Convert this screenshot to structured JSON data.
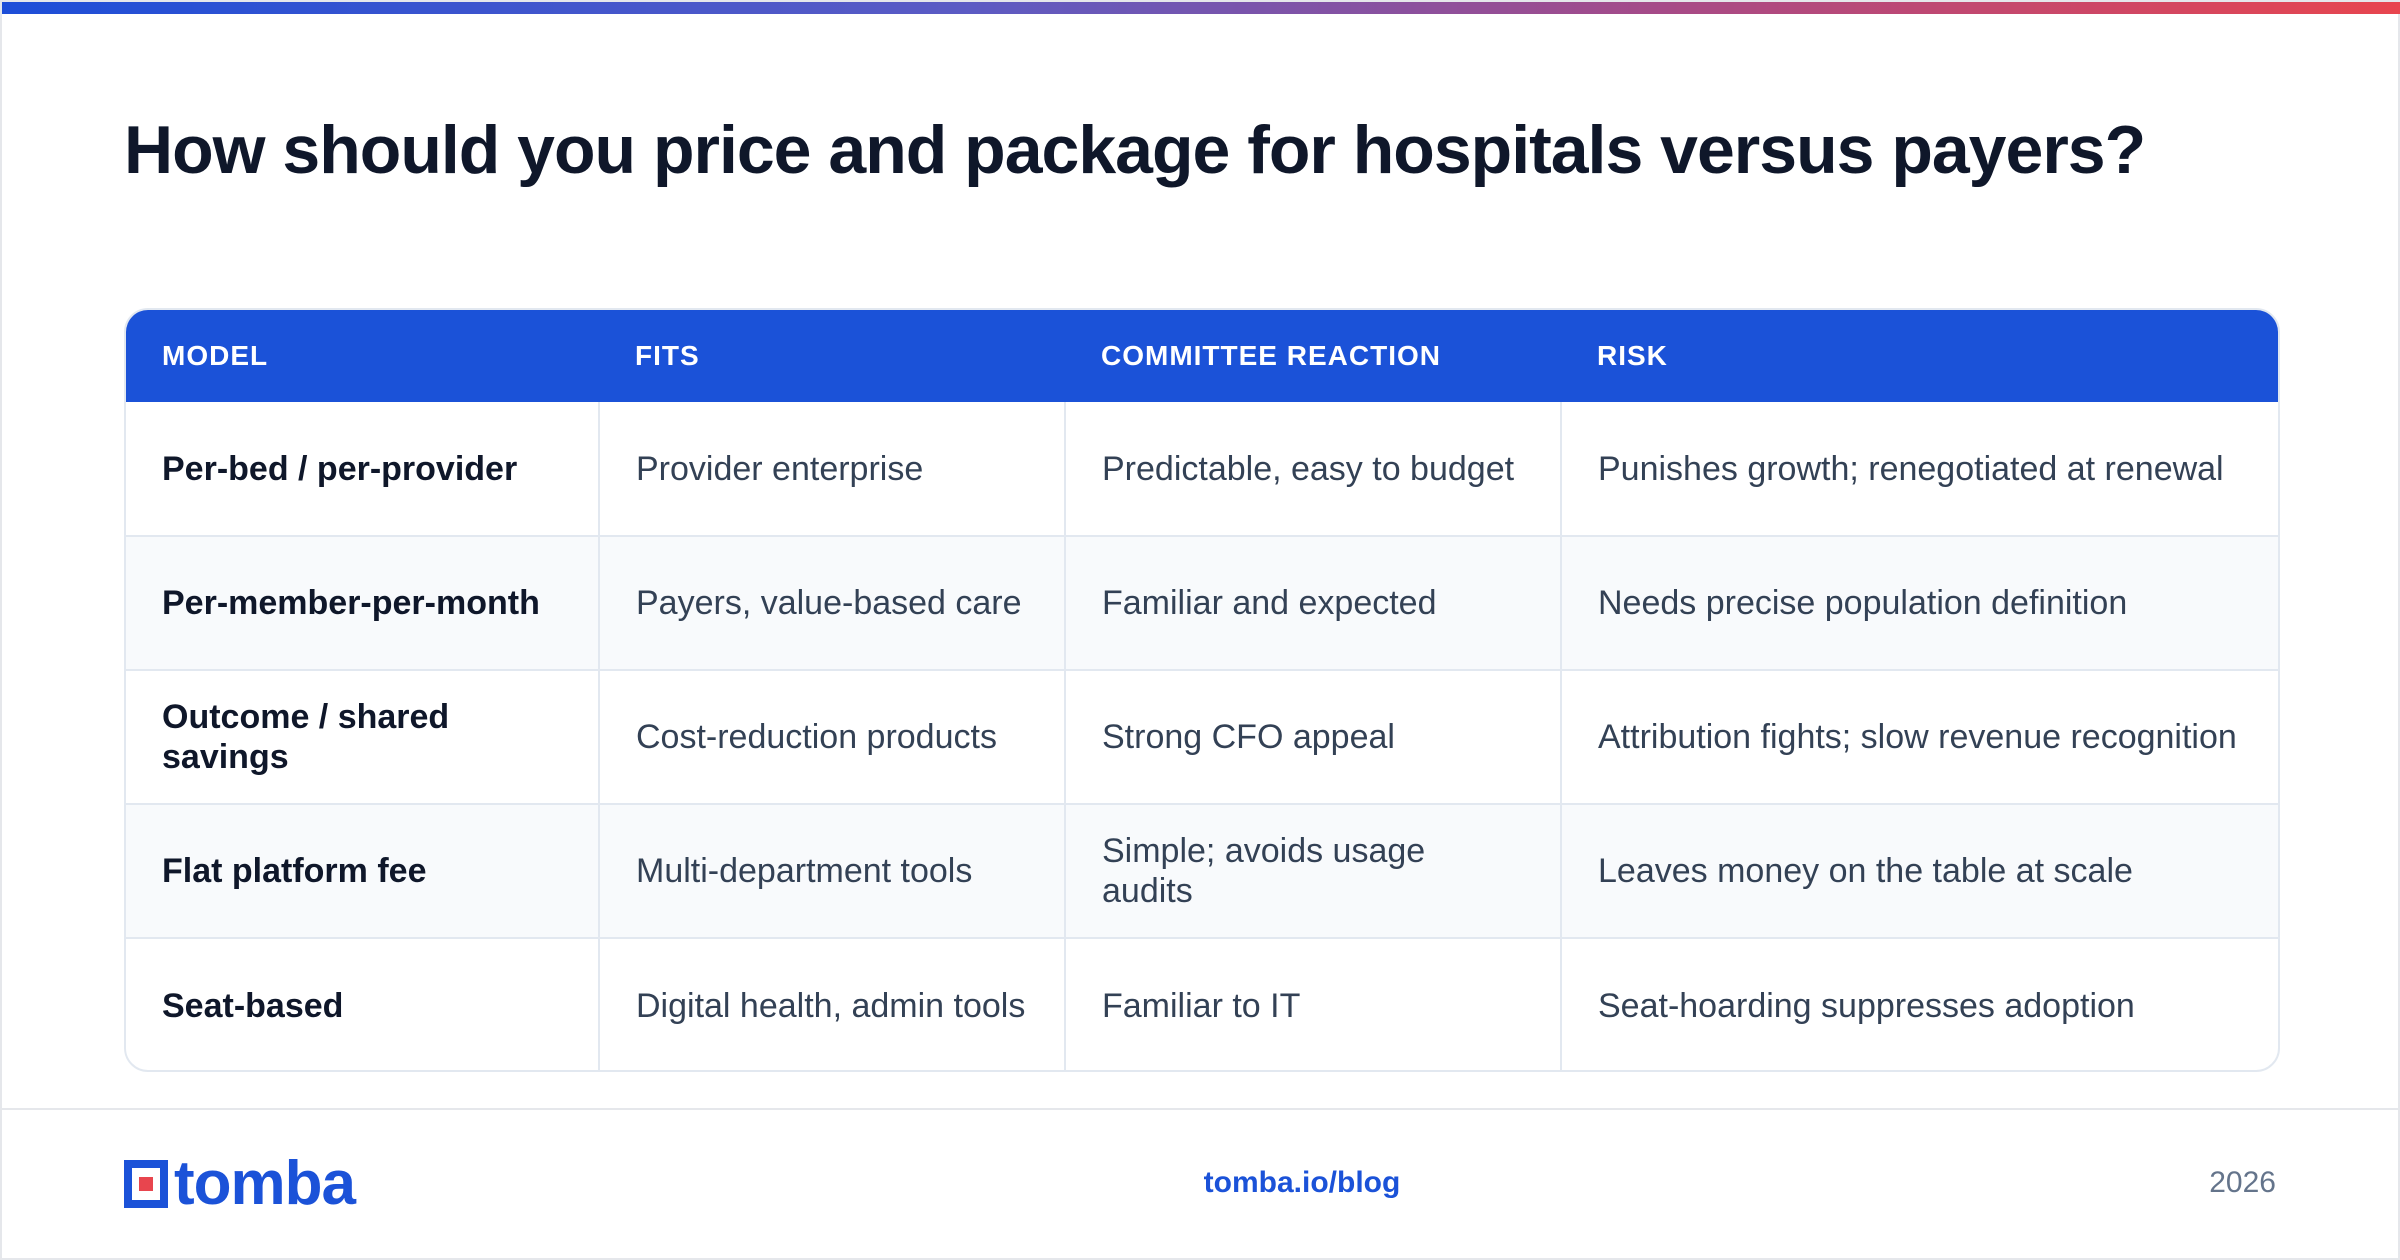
{
  "title": "How should you price and package for hospitals versus payers?",
  "table": {
    "headers": [
      "MODEL",
      "FITS",
      "COMMITTEE REACTION",
      "RISK"
    ],
    "rows": [
      [
        "Per-bed / per-provider",
        "Provider enterprise",
        "Predictable, easy to budget",
        "Punishes growth; renegotiated at renewal"
      ],
      [
        "Per-member-per-month",
        "Payers, value-based care",
        "Familiar and expected",
        "Needs precise population definition"
      ],
      [
        "Outcome / shared savings",
        "Cost-reduction products",
        "Strong CFO appeal",
        "Attribution fights; slow revenue recognition"
      ],
      [
        "Flat platform fee",
        "Multi-department tools",
        "Simple; avoids usage audits",
        "Leaves money on the table at scale"
      ],
      [
        "Seat-based",
        "Digital health, admin tools",
        "Familiar to IT",
        "Seat-hoarding suppresses adoption"
      ]
    ]
  },
  "footer": {
    "logo_text": "tomba",
    "link": "tomba.io/blog",
    "year": "2026"
  },
  "colors": {
    "accent": "#1b52d8",
    "logo_red": "#e8454e",
    "title": "#0f172a"
  },
  "icons": {
    "logo": "tomba-logo-icon"
  }
}
